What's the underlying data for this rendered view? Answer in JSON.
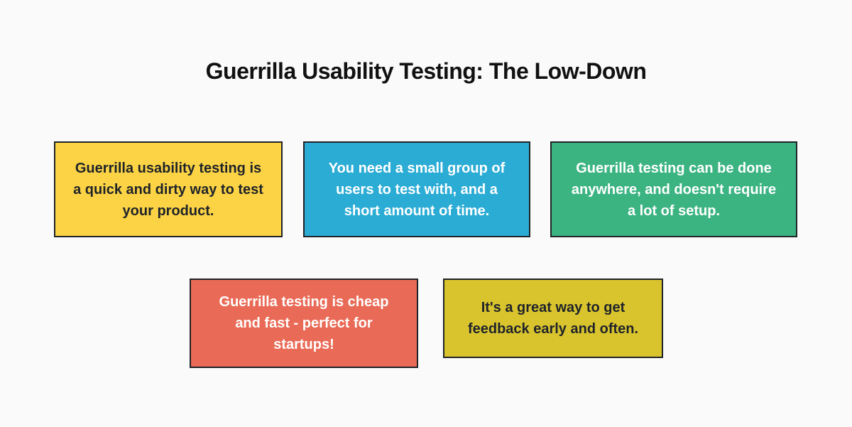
{
  "palette": {
    "background": "#fafafa",
    "card_border": "#1f2328",
    "title_color": "#111111"
  },
  "title": {
    "text": "Guerrilla Usability Testing: The Low-Down"
  },
  "cards": [
    {
      "id": "quick-and-dirty",
      "text": "Guerrilla usability testing is a quick and dirty way to test your product.",
      "bg": "#fbd344",
      "text_color": "#1f2329"
    },
    {
      "id": "small-group-short-time",
      "text": "You need a small group of users to test with, and a short amount of time.",
      "bg": "#2bacd5",
      "text_color": "#ffffff"
    },
    {
      "id": "done-anywhere",
      "text": "Guerrilla testing can be done anywhere, and doesn't require a lot of setup.",
      "bg": "#3cb482",
      "text_color": "#ffffff"
    },
    {
      "id": "cheap-and-fast",
      "text": "Guerrilla testing is cheap and fast - perfect for startups!",
      "bg": "#e96a56",
      "text_color": "#ffffff"
    },
    {
      "id": "feedback-early-often",
      "text": "It's a great way to get feedback early and often.",
      "bg": "#d9c42e",
      "text_color": "#1f2329"
    }
  ]
}
